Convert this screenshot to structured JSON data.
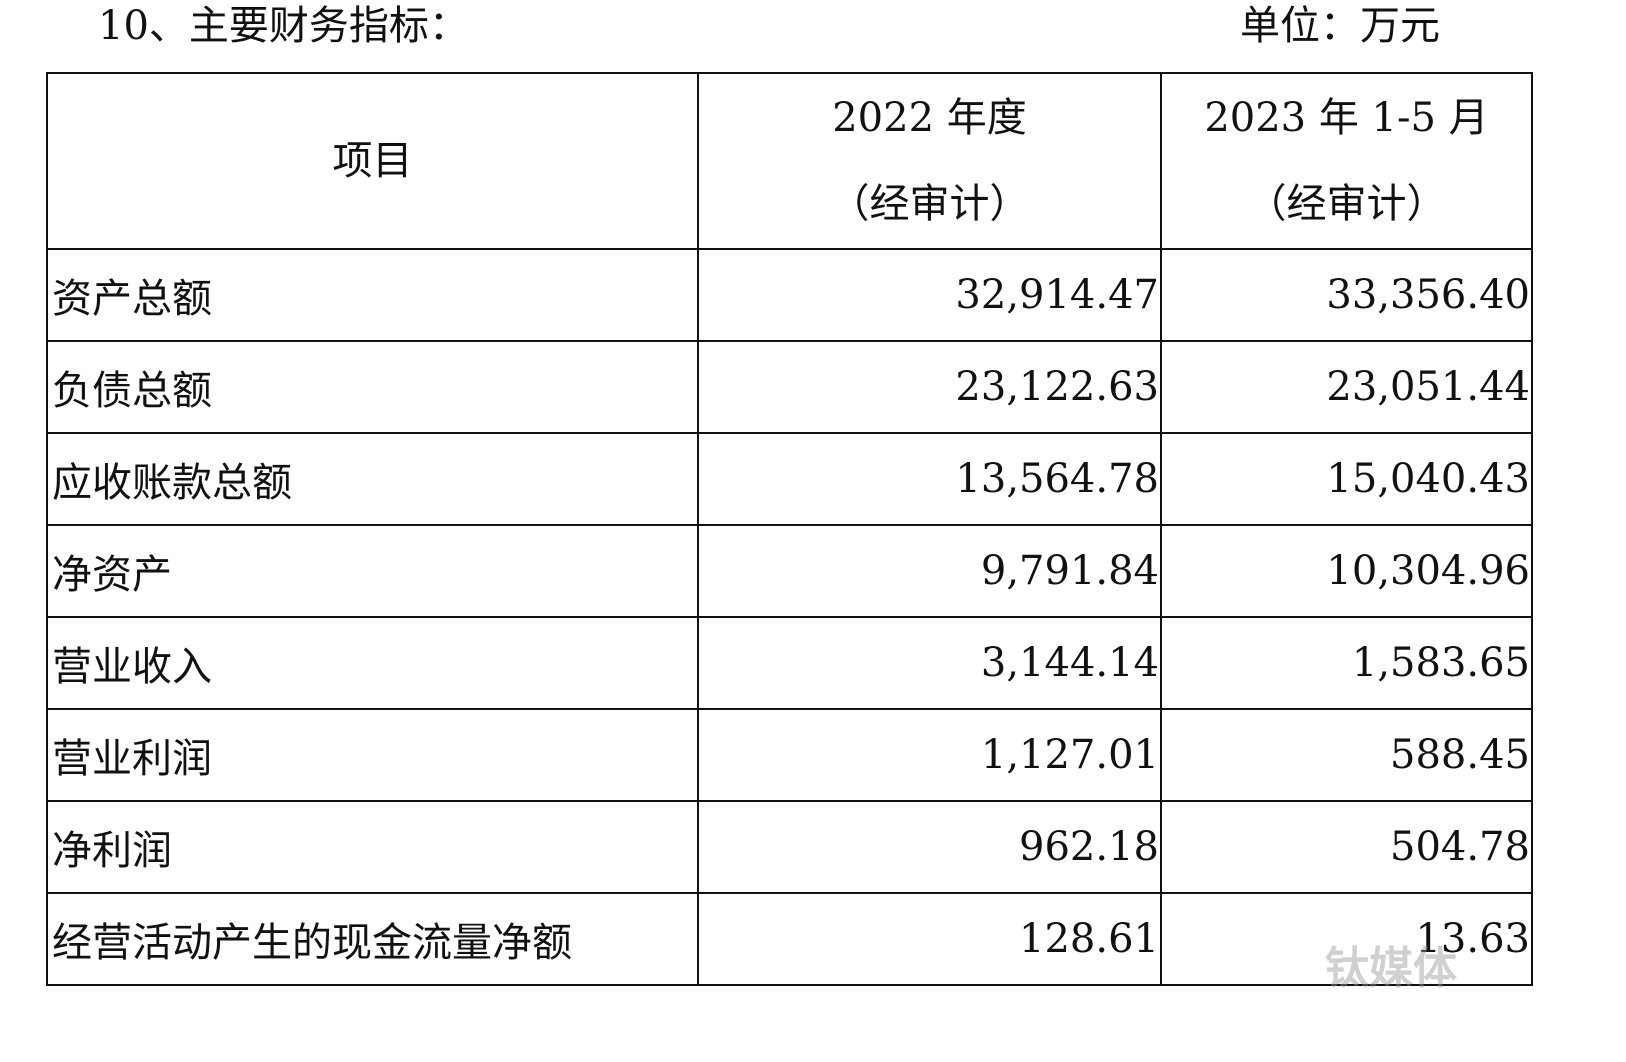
{
  "header": {
    "title": "10、主要财务指标：",
    "unit": "单位：万元"
  },
  "table": {
    "columns": [
      {
        "lines": [
          "项目"
        ]
      },
      {
        "lines": [
          "2022 年度",
          "（经审计）"
        ]
      },
      {
        "lines": [
          "2023 年 1-5 月",
          "（经审计）"
        ]
      }
    ],
    "rows": [
      [
        "资产总额",
        "32,914.47",
        "33,356.40"
      ],
      [
        "负债总额",
        "23,122.63",
        "23,051.44"
      ],
      [
        "应收账款总额",
        "13,564.78",
        "15,040.43"
      ],
      [
        "净资产",
        "9,791.84",
        "10,304.96"
      ],
      [
        "营业收入",
        "3,144.14",
        "1,583.65"
      ],
      [
        "营业利润",
        "1,127.01",
        "588.45"
      ],
      [
        "净利润",
        "962.18",
        "504.78"
      ],
      [
        "经营活动产生的现金流量净额",
        "128.61",
        "13.63"
      ]
    ]
  },
  "watermark": "钛媒体"
}
